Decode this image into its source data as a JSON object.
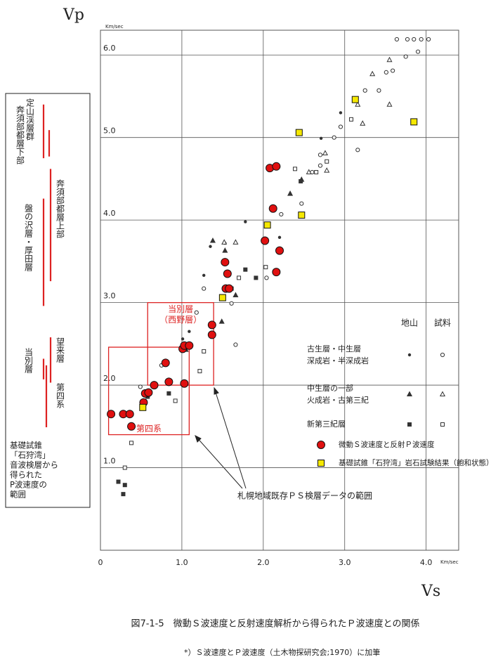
{
  "chart_data": {
    "type": "scatter",
    "y_title": "Vp",
    "x_title": "Vs",
    "y_unit": "Km/sec",
    "x_unit": "Km/sec",
    "caption": "図7-1-5　微動Ｓ波速度と反射速度解析から得られたＰ波速度との関係",
    "footnote": "*）Ｓ波速度とＰ波速度（土木物探研究会;1970）に加筆",
    "xlim": [
      0,
      4.4
    ],
    "ylim": [
      0,
      6.3
    ],
    "xticks": [
      0,
      {
        "value": 1,
        "label": "1.0"
      },
      {
        "value": 2,
        "label": "2.0"
      },
      {
        "value": 3,
        "label": "3.0"
      },
      {
        "value": 4,
        "label": "4.0"
      }
    ],
    "yticks": [
      {
        "value": 1,
        "label": "1.0"
      },
      {
        "value": 2,
        "label": "2.0"
      },
      {
        "value": 3,
        "label": "3.0"
      },
      {
        "value": 4,
        "label": "4.0"
      },
      {
        "value": 5,
        "label": "5.0"
      },
      {
        "value": 6,
        "label": "6.0"
      }
    ],
    "grid": true,
    "legend_columns": [
      "地山",
      "試料"
    ],
    "groups": [
      {
        "label": [
          "古生層・中生層",
          "深成岩・半深成岩"
        ],
        "series": [
          {
            "marker": "dot",
            "color": "#333",
            "x": [
              2.95,
              2.71,
              1.78,
              1.53,
              1.35,
              1.27,
              2.2,
              1.09,
              1.01
            ],
            "values": [
              5.3,
              4.99,
              3.98,
              3.72,
              3.68,
              3.33,
              3.79,
              2.65,
              2.56
            ]
          },
          {
            "marker": "circle",
            "color": "#333",
            "x": [
              3.64,
              3.77,
              3.85,
              3.94,
              4.03,
              3.9,
              3.75,
              3.51,
              3.59,
              3.25,
              3.42,
              2.95,
              2.87,
              2.7,
              2.6,
              2.22,
              2.04,
              1.61,
              1.27,
              1.18,
              0.49,
              0.75,
              3.16,
              1.66,
              2.7,
              2.47
            ],
            "values": [
              6.19,
              6.19,
              6.19,
              6.19,
              6.19,
              6.04,
              5.98,
              5.79,
              5.81,
              5.57,
              5.57,
              5.13,
              5.0,
              4.66,
              4.58,
              4.07,
              3.3,
              2.99,
              3.17,
              2.88,
              1.98,
              2.24,
              4.85,
              2.49,
              4.79,
              4.2
            ]
          }
        ]
      },
      {
        "label": [
          "中生層の一部",
          "火成岩・古第三紀"
        ],
        "series": [
          {
            "marker": "triangle-filled",
            "color": "#333",
            "x": [
              1.38,
              1.53,
              2.33,
              2.47,
              1.49,
              1.66,
              1.05
            ],
            "values": [
              3.75,
              3.63,
              4.32,
              4.49,
              2.77,
              3.09,
              2.43
            ]
          },
          {
            "marker": "triangle",
            "color": "#333",
            "x": [
              3.55,
              3.34,
              3.16,
              3.22,
              2.76,
              2.56,
              1.52,
              1.66,
              2.78,
              3.55
            ],
            "values": [
              5.94,
              5.77,
              5.4,
              5.17,
              4.81,
              4.58,
              3.73,
              3.73,
              4.6,
              5.4
            ]
          }
        ]
      },
      {
        "label": [
          "新第三紀層"
        ],
        "series": [
          {
            "marker": "square-filled",
            "color": "#333",
            "x": [
              0.22,
              0.3,
              0.28,
              1.78,
              1.91,
              0.58,
              0.84,
              1.61,
              2.46
            ],
            "values": [
              0.83,
              0.79,
              0.68,
              3.4,
              3.3,
              1.86,
              1.9,
              3.17,
              4.47
            ]
          },
          {
            "marker": "square",
            "color": "#333",
            "x": [
              0.3,
              0.38,
              0.92,
              1.27,
              1.22,
              1.7,
              2.03,
              2.39,
              2.65,
              2.78,
              3.08
            ],
            "values": [
              1.0,
              1.3,
              1.81,
              2.41,
              2.17,
              3.3,
              3.43,
              4.62,
              4.58,
              4.71,
              5.22
            ]
          }
        ]
      }
    ],
    "series": [
      {
        "name": "微動Ｓ波速度と反射Ｐ波速度",
        "marker": "big-circle",
        "color": "#e01010",
        "x": [
          0.13,
          0.28,
          0.36,
          0.38,
          0.53,
          0.55,
          0.59,
          0.66,
          0.8,
          0.84,
          1.03,
          1.01,
          1.03,
          1.09,
          1.37,
          1.37,
          1.53,
          1.56,
          1.54,
          1.58,
          2.08,
          2.16,
          2.12,
          2.02,
          2.2,
          2.16
        ],
        "values": [
          1.65,
          1.65,
          1.65,
          1.5,
          1.79,
          1.9,
          1.91,
          2.0,
          2.27,
          2.04,
          2.02,
          2.44,
          2.48,
          2.48,
          2.73,
          2.61,
          3.49,
          3.35,
          3.17,
          3.17,
          4.63,
          4.65,
          4.14,
          3.75,
          3.63,
          3.37
        ]
      },
      {
        "name": "基礎試錐「石狩湾」岩石試験結果（飽和状態）",
        "marker": "big-square",
        "color": "#f5e800",
        "x": [
          0.52,
          1.5,
          2.05,
          2.47,
          2.44,
          3.13,
          3.85
        ],
        "values": [
          1.73,
          3.06,
          3.94,
          4.06,
          5.06,
          5.46,
          5.19
        ]
      }
    ],
    "boxes": [
      {
        "label": [
          "当別層",
          "（西野層）"
        ],
        "vs": [
          0.58,
          1.39
        ],
        "vp": [
          2.0,
          3.0
        ]
      },
      {
        "label": [
          "第四系"
        ],
        "vs": [
          0.1,
          1.09
        ],
        "vp": [
          1.4,
          2.46
        ]
      }
    ],
    "box_note": "札幌地域既存ＰＳ検層データの範囲",
    "ranges": [
      {
        "name": "定山渓層群",
        "low": 4.75,
        "high": 5.4
      },
      {
        "name": "奔須部都層下部",
        "low": 4.77,
        "high": 5.09
      },
      {
        "name": "奔須部都層上部",
        "low": 3.26,
        "high": 4.62
      },
      {
        "name": "盤の沢層・厚田層",
        "low": 2.96,
        "high": 4.26
      },
      {
        "name": "望来層",
        "low": 2.03,
        "high": 2.58
      },
      {
        "name": "当別層",
        "low": 2.07,
        "high": 2.32
      },
      {
        "name": "第四系",
        "low": 1.49,
        "high": 2.24
      }
    ],
    "ranges_note": [
      "基礎試錐",
      "「石狩湾」",
      "音波検層から",
      "得られた",
      "P波速度の",
      "範囲"
    ]
  }
}
